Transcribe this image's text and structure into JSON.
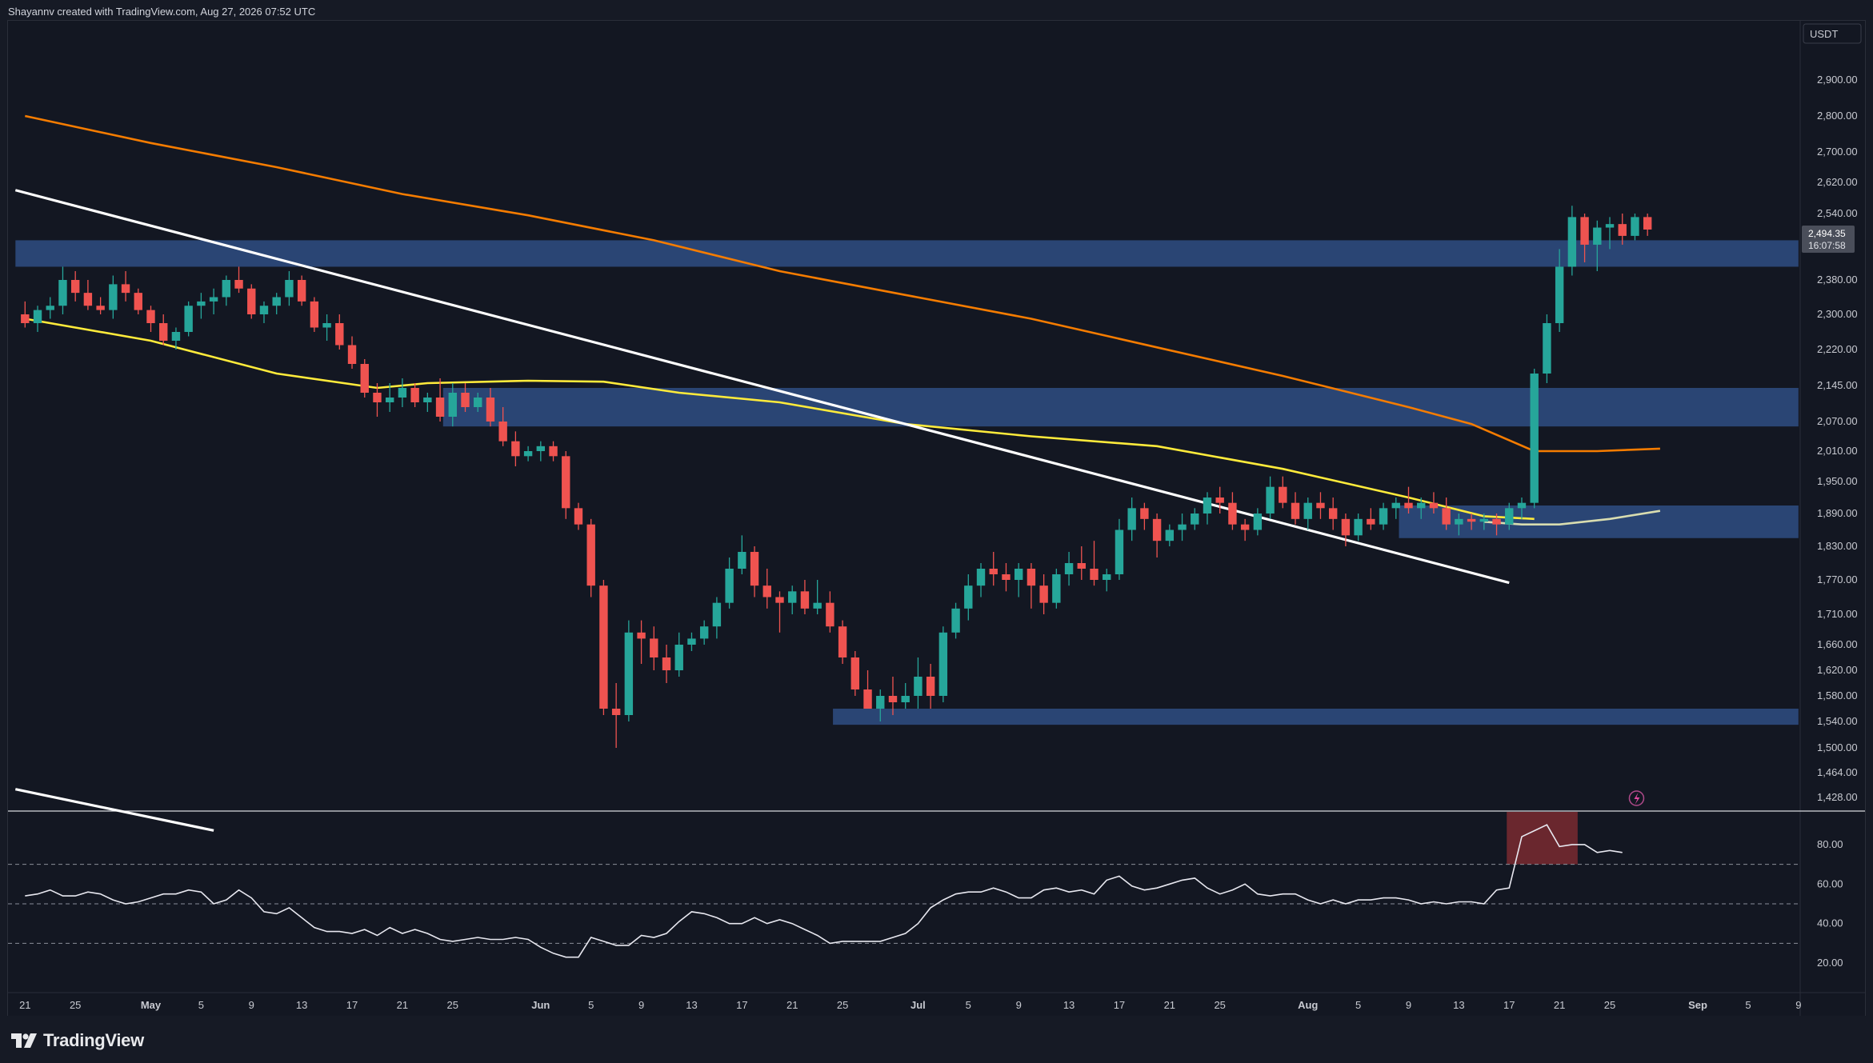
{
  "header": {
    "credit": "Shayannv created with TradingView.com, Aug 27, 2026 07:52 UTC"
  },
  "footer": {
    "logo_text": "TradingView"
  },
  "colors": {
    "background": "#131722",
    "up": "#26a69a",
    "down": "#ef5350",
    "zone": "#2f4f86",
    "ema_slow": "#f57c00",
    "ema_fast": "#ffeb3b",
    "trendline": "#ffffff",
    "rsi_line": "#e8e8f0",
    "rsi_overbought_fill": "#7a2a30"
  },
  "chart_data": [
    {
      "type": "candlestick",
      "quote_currency": "USDT",
      "last_price_label": "2,494.35",
      "countdown_label": "16:07:58",
      "y_ticks": [
        "2,900.00",
        "2,800.00",
        "2,700.00",
        "2,620.00",
        "2,540.00",
        "2,380.00",
        "2,300.00",
        "2,220.00",
        "2,145.00",
        "2,070.00",
        "2,010.00",
        "1,950.00",
        "1,890.00",
        "1,830.00",
        "1,770.00",
        "1,710.00",
        "1,660.00",
        "1,620.00",
        "1,580.00",
        "1,540.00",
        "1,500.00",
        "1,464.00",
        "1,428.00"
      ],
      "y_tick_values": [
        2900,
        2800,
        2700,
        2620,
        2540,
        2380,
        2300,
        2220,
        2145,
        2070,
        2010,
        1950,
        1890,
        1830,
        1770,
        1710,
        1660,
        1620,
        1580,
        1540,
        1500,
        1464,
        1428
      ],
      "x_ticks": [
        {
          "label": "21",
          "day": 0
        },
        {
          "label": "25",
          "day": 4
        },
        {
          "label": "May",
          "day": 10
        },
        {
          "label": "5",
          "day": 14
        },
        {
          "label": "9",
          "day": 18
        },
        {
          "label": "13",
          "day": 22
        },
        {
          "label": "17",
          "day": 26
        },
        {
          "label": "21",
          "day": 30
        },
        {
          "label": "25",
          "day": 34
        },
        {
          "label": "Jun",
          "day": 41
        },
        {
          "label": "5",
          "day": 45
        },
        {
          "label": "9",
          "day": 49
        },
        {
          "label": "13",
          "day": 53
        },
        {
          "label": "17",
          "day": 57
        },
        {
          "label": "21",
          "day": 61
        },
        {
          "label": "25",
          "day": 65
        },
        {
          "label": "Jul",
          "day": 71
        },
        {
          "label": "5",
          "day": 75
        },
        {
          "label": "9",
          "day": 79
        },
        {
          "label": "13",
          "day": 83
        },
        {
          "label": "17",
          "day": 87
        },
        {
          "label": "21",
          "day": 91
        },
        {
          "label": "25",
          "day": 95
        },
        {
          "label": "Aug",
          "day": 102
        },
        {
          "label": "5",
          "day": 106
        },
        {
          "label": "9",
          "day": 110
        },
        {
          "label": "13",
          "day": 114
        },
        {
          "label": "17",
          "day": 118
        },
        {
          "label": "21",
          "day": 122
        },
        {
          "label": "25",
          "day": 126
        },
        {
          "label": "Sep",
          "day": 133
        },
        {
          "label": "5",
          "day": 137
        },
        {
          "label": "9",
          "day": 141
        }
      ],
      "candles_ohlc_daily_from_apr_20": [
        [
          2300,
          2330,
          2270,
          2280
        ],
        [
          2280,
          2320,
          2260,
          2310
        ],
        [
          2310,
          2340,
          2290,
          2320
        ],
        [
          2320,
          2410,
          2300,
          2380
        ],
        [
          2380,
          2400,
          2330,
          2350
        ],
        [
          2350,
          2380,
          2310,
          2320
        ],
        [
          2320,
          2340,
          2300,
          2310
        ],
        [
          2310,
          2390,
          2290,
          2370
        ],
        [
          2370,
          2400,
          2330,
          2350
        ],
        [
          2350,
          2360,
          2300,
          2310
        ],
        [
          2310,
          2320,
          2260,
          2280
        ],
        [
          2280,
          2300,
          2230,
          2240
        ],
        [
          2240,
          2270,
          2220,
          2260
        ],
        [
          2260,
          2330,
          2250,
          2320
        ],
        [
          2320,
          2350,
          2290,
          2330
        ],
        [
          2330,
          2360,
          2300,
          2340
        ],
        [
          2340,
          2390,
          2320,
          2380
        ],
        [
          2380,
          2410,
          2350,
          2360
        ],
        [
          2360,
          2370,
          2290,
          2300
        ],
        [
          2300,
          2330,
          2280,
          2320
        ],
        [
          2320,
          2350,
          2300,
          2340
        ],
        [
          2340,
          2400,
          2320,
          2380
        ],
        [
          2380,
          2390,
          2320,
          2330
        ],
        [
          2330,
          2340,
          2260,
          2270
        ],
        [
          2270,
          2300,
          2240,
          2280
        ],
        [
          2280,
          2300,
          2220,
          2230
        ],
        [
          2230,
          2250,
          2180,
          2190
        ],
        [
          2190,
          2200,
          2120,
          2130
        ],
        [
          2130,
          2150,
          2080,
          2110
        ],
        [
          2110,
          2150,
          2090,
          2120
        ],
        [
          2120,
          2160,
          2100,
          2140
        ],
        [
          2140,
          2150,
          2100,
          2110
        ],
        [
          2110,
          2130,
          2090,
          2120
        ],
        [
          2120,
          2160,
          2070,
          2080
        ],
        [
          2080,
          2150,
          2060,
          2130
        ],
        [
          2130,
          2150,
          2090,
          2100
        ],
        [
          2100,
          2130,
          2090,
          2120
        ],
        [
          2120,
          2140,
          2060,
          2070
        ],
        [
          2070,
          2100,
          2020,
          2030
        ],
        [
          2030,
          2050,
          1980,
          2000
        ],
        [
          2000,
          2020,
          1990,
          2010
        ],
        [
          2010,
          2030,
          1990,
          2020
        ],
        [
          2020,
          2030,
          1990,
          2000
        ],
        [
          2000,
          2010,
          1880,
          1900
        ],
        [
          1900,
          1910,
          1860,
          1870
        ],
        [
          1870,
          1880,
          1740,
          1760
        ],
        [
          1760,
          1770,
          1550,
          1560
        ],
        [
          1560,
          1600,
          1500,
          1550
        ],
        [
          1550,
          1700,
          1540,
          1680
        ],
        [
          1680,
          1700,
          1630,
          1670
        ],
        [
          1670,
          1690,
          1620,
          1640
        ],
        [
          1640,
          1660,
          1600,
          1620
        ],
        [
          1620,
          1680,
          1610,
          1660
        ],
        [
          1660,
          1680,
          1650,
          1670
        ],
        [
          1670,
          1700,
          1660,
          1690
        ],
        [
          1690,
          1740,
          1670,
          1730
        ],
        [
          1730,
          1810,
          1720,
          1790
        ],
        [
          1790,
          1850,
          1780,
          1820
        ],
        [
          1820,
          1830,
          1740,
          1760
        ],
        [
          1760,
          1790,
          1720,
          1740
        ],
        [
          1740,
          1750,
          1680,
          1730
        ],
        [
          1730,
          1760,
          1710,
          1750
        ],
        [
          1750,
          1770,
          1710,
          1720
        ],
        [
          1720,
          1770,
          1710,
          1730
        ],
        [
          1730,
          1750,
          1680,
          1690
        ],
        [
          1690,
          1700,
          1630,
          1640
        ],
        [
          1640,
          1650,
          1580,
          1590
        ],
        [
          1590,
          1620,
          1560,
          1560
        ],
        [
          1560,
          1590,
          1540,
          1580
        ],
        [
          1580,
          1610,
          1550,
          1570
        ],
        [
          1570,
          1600,
          1560,
          1580
        ],
        [
          1580,
          1640,
          1560,
          1610
        ],
        [
          1610,
          1630,
          1560,
          1580
        ],
        [
          1580,
          1690,
          1570,
          1680
        ],
        [
          1680,
          1730,
          1670,
          1720
        ],
        [
          1720,
          1780,
          1700,
          1760
        ],
        [
          1760,
          1800,
          1740,
          1790
        ],
        [
          1790,
          1820,
          1760,
          1780
        ],
        [
          1780,
          1800,
          1750,
          1770
        ],
        [
          1770,
          1800,
          1740,
          1790
        ],
        [
          1790,
          1800,
          1720,
          1760
        ],
        [
          1760,
          1780,
          1710,
          1730
        ],
        [
          1730,
          1790,
          1720,
          1780
        ],
        [
          1780,
          1820,
          1760,
          1800
        ],
        [
          1800,
          1830,
          1770,
          1790
        ],
        [
          1790,
          1840,
          1760,
          1770
        ],
        [
          1770,
          1790,
          1750,
          1780
        ],
        [
          1780,
          1880,
          1770,
          1860
        ],
        [
          1860,
          1920,
          1840,
          1900
        ],
        [
          1900,
          1910,
          1860,
          1880
        ],
        [
          1880,
          1890,
          1810,
          1840
        ],
        [
          1840,
          1870,
          1830,
          1860
        ],
        [
          1860,
          1890,
          1840,
          1870
        ],
        [
          1870,
          1900,
          1860,
          1890
        ],
        [
          1890,
          1930,
          1870,
          1920
        ],
        [
          1920,
          1940,
          1890,
          1910
        ],
        [
          1910,
          1930,
          1860,
          1870
        ],
        [
          1870,
          1880,
          1840,
          1860
        ],
        [
          1860,
          1900,
          1850,
          1890
        ],
        [
          1890,
          1960,
          1880,
          1940
        ],
        [
          1940,
          1960,
          1900,
          1910
        ],
        [
          1910,
          1930,
          1870,
          1880
        ],
        [
          1880,
          1920,
          1860,
          1910
        ],
        [
          1910,
          1930,
          1880,
          1900
        ],
        [
          1900,
          1920,
          1860,
          1880
        ],
        [
          1880,
          1890,
          1830,
          1850
        ],
        [
          1850,
          1890,
          1840,
          1880
        ],
        [
          1880,
          1900,
          1860,
          1870
        ],
        [
          1870,
          1910,
          1860,
          1900
        ],
        [
          1900,
          1920,
          1880,
          1910
        ],
        [
          1910,
          1940,
          1890,
          1900
        ],
        [
          1900,
          1920,
          1880,
          1910
        ],
        [
          1910,
          1930,
          1890,
          1900
        ],
        [
          1900,
          1920,
          1860,
          1870
        ],
        [
          1870,
          1890,
          1850,
          1880
        ],
        [
          1880,
          1890,
          1860,
          1875
        ],
        [
          1875,
          1890,
          1860,
          1880
        ],
        [
          1880,
          1890,
          1850,
          1870
        ],
        [
          1870,
          1910,
          1860,
          1900
        ],
        [
          1900,
          1920,
          1880,
          1910
        ],
        [
          1910,
          2180,
          1900,
          2170
        ],
        [
          2170,
          2300,
          2150,
          2280
        ],
        [
          2280,
          2450,
          2260,
          2410
        ],
        [
          2410,
          2560,
          2390,
          2530
        ],
        [
          2530,
          2540,
          2420,
          2460
        ],
        [
          2460,
          2520,
          2400,
          2500
        ],
        [
          2500,
          2530,
          2450,
          2510
        ],
        [
          2510,
          2540,
          2460,
          2480
        ],
        [
          2480,
          2540,
          2470,
          2530
        ],
        [
          2530,
          2540,
          2480,
          2494.35
        ]
      ],
      "ema_fast": [
        [
          0,
          2290
        ],
        [
          10,
          2240
        ],
        [
          20,
          2170
        ],
        [
          28,
          2140
        ],
        [
          32,
          2150
        ],
        [
          40,
          2155
        ],
        [
          46,
          2153
        ],
        [
          52,
          2130
        ],
        [
          60,
          2110
        ],
        [
          70,
          2065
        ],
        [
          80,
          2040
        ],
        [
          90,
          2020
        ],
        [
          100,
          1975
        ],
        [
          110,
          1920
        ],
        [
          116,
          1885
        ],
        [
          120,
          1880
        ]
      ],
      "ema_fast_continuation": [
        [
          116,
          1875
        ],
        [
          119,
          1870
        ],
        [
          122,
          1870
        ],
        [
          126,
          1880
        ],
        [
          130,
          1895
        ]
      ],
      "ema_slow": [
        [
          0,
          2800
        ],
        [
          10,
          2725
        ],
        [
          20,
          2660
        ],
        [
          30,
          2590
        ],
        [
          40,
          2535
        ],
        [
          50,
          2470
        ],
        [
          60,
          2400
        ],
        [
          70,
          2345
        ],
        [
          80,
          2290
        ],
        [
          90,
          2225
        ],
        [
          100,
          2165
        ],
        [
          110,
          2100
        ],
        [
          115,
          2065
        ],
        [
          120,
          2010
        ],
        [
          125,
          2010
        ],
        [
          130,
          2015
        ]
      ],
      "trendlines": [
        {
          "from": [
            0,
            2600
          ],
          "to": [
            118,
            1765
          ]
        },
        {
          "from": [
            0,
            1440
          ],
          "to": [
            15,
            1380
          ]
        }
      ],
      "zones": [
        {
          "day_start": 0,
          "day_end": 141,
          "low": 2410,
          "high": 2470
        },
        {
          "day_start": 34,
          "day_end": 141,
          "low": 2060,
          "high": 2140
        },
        {
          "day_start": 110,
          "day_end": 141,
          "low": 1845,
          "high": 1905
        },
        {
          "day_start": 65,
          "day_end": 141,
          "low": 1535,
          "high": 1560
        }
      ]
    },
    {
      "type": "line",
      "role": "oscillator",
      "y_ticks": [
        "80.00",
        "60.00",
        "40.00",
        "20.00"
      ],
      "y_tick_values": [
        80,
        60,
        40,
        20
      ],
      "dashed_levels": [
        70,
        50,
        30
      ],
      "overbought_highlight_days": [
        118,
        123
      ],
      "values": [
        54,
        55,
        57,
        54,
        54,
        56,
        55,
        52,
        50,
        51,
        53,
        55,
        55,
        57,
        56,
        50,
        52,
        57,
        53,
        46,
        45,
        48,
        43,
        38,
        36,
        36,
        35,
        37,
        34,
        38,
        35,
        37,
        35,
        32,
        31,
        32,
        33,
        32,
        32,
        33,
        32,
        28,
        25,
        23,
        23,
        33,
        31,
        29,
        29,
        34,
        33,
        35,
        41,
        46,
        45,
        43,
        40,
        40,
        43,
        40,
        42,
        40,
        37,
        34,
        30,
        31,
        31,
        31,
        31,
        33,
        35,
        40,
        48,
        52,
        55,
        56,
        56,
        58,
        56,
        53,
        53,
        57,
        58,
        56,
        57,
        55,
        62,
        64,
        59,
        57,
        58,
        60,
        62,
        63,
        58,
        55,
        57,
        60,
        55,
        54,
        55,
        55,
        52,
        50,
        52,
        50,
        52,
        52,
        53,
        53,
        52,
        50,
        51,
        50,
        51,
        51,
        50,
        57,
        58,
        84,
        87,
        90,
        79,
        80,
        80,
        76,
        77,
        76
      ]
    }
  ]
}
